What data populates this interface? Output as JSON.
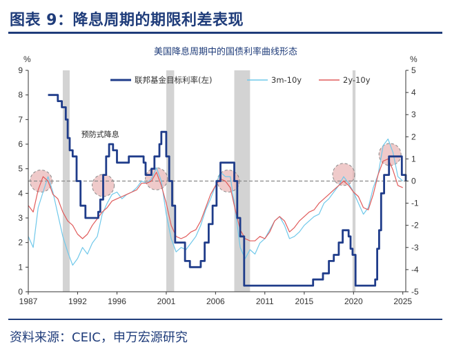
{
  "header": {
    "title": "图表 9：降息周期的期限利差表现"
  },
  "footer": {
    "source": "资料来源：CEIC，申万宏源研究"
  },
  "colors": {
    "fed": "#1f3c8a",
    "s3m10y": "#6fc8ea",
    "s2y10y": "#e05a5a",
    "shade": "#d3d3d3",
    "circle_fill": "#e8b4b4",
    "dashed": "#888888",
    "accent": "#1f3c7a"
  },
  "chart_data": {
    "type": "line",
    "title": "美国降息周期中的国债利率曲线形态",
    "ylabel_left": "%",
    "ylabel_right": "%",
    "ylim_left": [
      0,
      9
    ],
    "ylim_right": [
      -5,
      5
    ],
    "xlim": [
      1987,
      2025.3
    ],
    "x_ticks": [
      1987,
      1992,
      1996,
      2001,
      2006,
      2011,
      2015,
      2020,
      2025
    ],
    "x_tick_labels": [
      "1987",
      "1992",
      "1996",
      "2001",
      "2006",
      "2011",
      "2015",
      "2020",
      "2025"
    ],
    "y_ticks_left": [
      0,
      1,
      2,
      3,
      4,
      5,
      6,
      7,
      8,
      9
    ],
    "y_ticks_right": [
      -5,
      -4,
      -3,
      -2,
      -1,
      0,
      1,
      2,
      3,
      4,
      5
    ],
    "zero_line_right": 0,
    "shaded_periods": [
      [
        1990.5,
        1991.2
      ],
      [
        2001.0,
        2001.8
      ],
      [
        2007.9,
        2009.5
      ],
      [
        2019.9,
        2020.2
      ]
    ],
    "highlight_circles": [
      {
        "x": 1988.3,
        "y_right": 0.0
      },
      {
        "x": 1994.6,
        "y_right": -0.2
      },
      {
        "x": 2000.0,
        "y_right": 0.1
      },
      {
        "x": 2007.3,
        "y_right": 0.0
      },
      {
        "x": 2019.0,
        "y_right": 0.3
      },
      {
        "x": 2023.7,
        "y_right": 1.2
      }
    ],
    "annotations": [
      {
        "text": "预防式降息",
        "x": 1994.3,
        "y_left": 6.3
      }
    ],
    "legend": [
      "联邦基金目标利率(左)",
      "3m-10y",
      "2y-10y"
    ],
    "series": [
      {
        "name": "联邦基金目标利率(左)",
        "axis": "left",
        "step": true,
        "x": [
          1989.0,
          1989.8,
          1990.0,
          1990.4,
          1990.8,
          1991.0,
          1991.2,
          1991.5,
          1991.9,
          1992.3,
          1992.8,
          1993.5,
          1994.1,
          1994.3,
          1994.6,
          1994.9,
          1995.2,
          1995.6,
          1996.0,
          1997.2,
          1998.7,
          1998.9,
          1999.2,
          1999.5,
          1999.8,
          2000.3,
          2000.5,
          2001.0,
          2001.3,
          2001.6,
          2001.9,
          2002.9,
          2003.4,
          2004.5,
          2004.9,
          2005.3,
          2005.7,
          2006.1,
          2006.5,
          2007.6,
          2007.9,
          2008.2,
          2008.5,
          2008.9,
          2015.9,
          2016.9,
          2017.5,
          2018.0,
          2018.5,
          2018.9,
          2019.5,
          2019.7,
          2019.9,
          2020.2,
          2022.2,
          2022.4,
          2022.6,
          2022.8,
          2023.1,
          2023.6,
          2024.7,
          2024.9,
          2025.3
        ],
        "y": [
          8.0,
          8.0,
          7.75,
          7.5,
          7.0,
          6.25,
          5.75,
          5.5,
          4.5,
          3.5,
          3.0,
          3.0,
          3.25,
          3.75,
          4.75,
          5.5,
          6.0,
          5.75,
          5.25,
          5.5,
          5.25,
          4.75,
          4.75,
          5.0,
          5.5,
          6.0,
          6.5,
          5.5,
          4.5,
          3.5,
          2.0,
          1.25,
          1.0,
          1.25,
          2.0,
          2.75,
          3.5,
          4.5,
          5.25,
          5.25,
          4.5,
          3.0,
          2.25,
          0.25,
          0.5,
          0.75,
          1.25,
          1.5,
          2.0,
          2.5,
          2.25,
          1.75,
          1.5,
          0.25,
          0.5,
          1.75,
          2.5,
          4.0,
          4.75,
          5.5,
          5.5,
          4.75,
          4.5
        ]
      },
      {
        "name": "3m-10y",
        "axis": "right",
        "x": [
          1987,
          1987.5,
          1988,
          1988.5,
          1989,
          1989.5,
          1990,
          1990.5,
          1991,
          1991.5,
          1992,
          1992.5,
          1993,
          1993.5,
          1994,
          1994.5,
          1995,
          1995.5,
          1996,
          1996.5,
          1997,
          1997.5,
          1998,
          1998.5,
          1999,
          1999.5,
          2000,
          2000.5,
          2001,
          2001.5,
          2002,
          2002.5,
          2003,
          2003.5,
          2004,
          2004.5,
          2005,
          2005.5,
          2006,
          2006.5,
          2007,
          2007.5,
          2008,
          2008.5,
          2009,
          2009.5,
          2010,
          2010.5,
          2011,
          2011.5,
          2012,
          2012.5,
          2013,
          2013.5,
          2014,
          2014.5,
          2015,
          2015.5,
          2016,
          2016.5,
          2017,
          2017.5,
          2018,
          2018.5,
          2019,
          2019.5,
          2020,
          2020.5,
          2021,
          2021.5,
          2022,
          2022.5,
          2023,
          2023.5,
          2024,
          2024.5,
          2025
        ],
        "y": [
          -2.5,
          -3.0,
          -1.2,
          -0.5,
          0.2,
          -0.5,
          -1.5,
          -2.5,
          -3.2,
          -3.8,
          -3.5,
          -3.0,
          -3.3,
          -2.8,
          -2.5,
          -1.5,
          -1.0,
          -0.6,
          -0.5,
          -0.8,
          -0.6,
          -0.5,
          -0.3,
          0.0,
          -0.1,
          0.1,
          0.6,
          0.0,
          -1.5,
          -2.6,
          -3.2,
          -3.0,
          -3.1,
          -2.8,
          -2.5,
          -2.0,
          -1.3,
          -0.8,
          -0.2,
          0.4,
          0.2,
          0.2,
          -1.3,
          -3.0,
          -3.5,
          -3.1,
          -3.3,
          -2.8,
          -2.6,
          -2.2,
          -1.8,
          -1.6,
          -2.0,
          -2.6,
          -2.5,
          -2.3,
          -2.0,
          -1.8,
          -1.6,
          -1.5,
          -1.0,
          -0.8,
          -0.5,
          -0.2,
          0.2,
          -0.1,
          -0.5,
          -1.0,
          -1.5,
          -1.2,
          -0.3,
          0.3,
          1.6,
          1.9,
          1.3,
          0.2,
          0.0
        ]
      },
      {
        "name": "2y-10y",
        "axis": "right",
        "x": [
          1987,
          1987.5,
          1988,
          1988.5,
          1989,
          1989.5,
          1990,
          1990.5,
          1991,
          1991.5,
          1992,
          1992.5,
          1993,
          1993.5,
          1994,
          1994.5,
          1995,
          1995.5,
          1996,
          1996.5,
          1997,
          1997.5,
          1998,
          1998.5,
          1999,
          1999.5,
          2000,
          2000.5,
          2001,
          2001.5,
          2002,
          2002.5,
          2003,
          2003.5,
          2004,
          2004.5,
          2005,
          2005.5,
          2006,
          2006.5,
          2007,
          2007.5,
          2008,
          2008.5,
          2009,
          2009.5,
          2010,
          2010.5,
          2011,
          2011.5,
          2012,
          2012.5,
          2013,
          2013.5,
          2014,
          2014.5,
          2015,
          2015.5,
          2016,
          2016.5,
          2017,
          2017.5,
          2018,
          2018.5,
          2019,
          2019.5,
          2020,
          2020.5,
          2021,
          2021.5,
          2022,
          2022.5,
          2023,
          2023.5,
          2024,
          2024.5,
          2025
        ],
        "y": [
          -1.1,
          -1.4,
          -0.4,
          0.2,
          0.0,
          -0.6,
          -0.8,
          -1.4,
          -1.8,
          -2.0,
          -2.4,
          -2.6,
          -2.4,
          -2.0,
          -1.7,
          -1.4,
          -1.2,
          -0.9,
          -0.8,
          -0.7,
          -0.6,
          -0.5,
          -0.4,
          -0.1,
          -0.1,
          0.0,
          0.4,
          -0.2,
          -1.0,
          -2.0,
          -2.5,
          -2.6,
          -2.5,
          -2.3,
          -2.2,
          -1.8,
          -1.2,
          -0.6,
          -0.2,
          0.1,
          0.0,
          -0.3,
          -1.3,
          -2.2,
          -2.6,
          -2.7,
          -2.7,
          -2.5,
          -2.6,
          -2.3,
          -1.8,
          -1.6,
          -1.8,
          -2.3,
          -2.1,
          -1.8,
          -1.6,
          -1.4,
          -1.3,
          -1.0,
          -0.8,
          -0.6,
          -0.4,
          -0.2,
          0.0,
          -0.2,
          -0.5,
          -0.7,
          -1.2,
          -1.3,
          -0.6,
          0.3,
          0.9,
          1.0,
          0.5,
          -0.2,
          -0.3
        ]
      }
    ]
  }
}
